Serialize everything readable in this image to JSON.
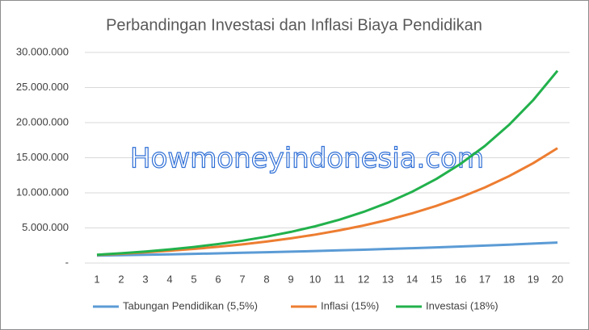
{
  "chart_data": {
    "type": "line",
    "title": "Perbandingan Investasi dan Inflasi Biaya Pendidikan",
    "watermark": "Howmoneyindonesia.com",
    "categories": [
      "1",
      "2",
      "3",
      "4",
      "5",
      "6",
      "7",
      "8",
      "9",
      "10",
      "11",
      "12",
      "13",
      "14",
      "15",
      "16",
      "17",
      "18",
      "19",
      "20"
    ],
    "series": [
      {
        "name": "Tabungan Pendidikan (5,5%)",
        "color": "#5b9bd5",
        "values": [
          1055000,
          1113000,
          1174000,
          1239000,
          1307000,
          1379000,
          1455000,
          1535000,
          1619000,
          1708000,
          1802000,
          1901000,
          2006000,
          2116000,
          2232000,
          2355000,
          2485000,
          2621000,
          2766000,
          2918000
        ]
      },
      {
        "name": "Inflasi (15%)",
        "color": "#ed7d31",
        "values": [
          1150000,
          1322500,
          1520900,
          1749000,
          2011400,
          2313100,
          2660000,
          3059000,
          3517900,
          4045600,
          4652400,
          5350300,
          6152800,
          7075700,
          8137100,
          9357600,
          10761300,
          12375500,
          14231800,
          16366500
        ]
      },
      {
        "name": "Investasi (18%)",
        "color": "#22b14c",
        "values": [
          1180000,
          1392400,
          1643000,
          1938800,
          2287800,
          2699600,
          3185500,
          3758900,
          4435500,
          5233800,
          6175900,
          7287600,
          8599400,
          10147200,
          11973700,
          14129000,
          16672200,
          19673300,
          23214400,
          27393000
        ]
      }
    ],
    "ylim": [
      0,
      30000000
    ],
    "yticks": [
      {
        "value": 0,
        "label": "-"
      },
      {
        "value": 5000000,
        "label": "5.000.000"
      },
      {
        "value": 10000000,
        "label": "10.000.000"
      },
      {
        "value": 15000000,
        "label": "15.000.000"
      },
      {
        "value": 20000000,
        "label": "20.000.000"
      },
      {
        "value": 25000000,
        "label": "25.000.000"
      },
      {
        "value": 30000000,
        "label": "30.000.000"
      }
    ],
    "grid": true,
    "legend": "bottom"
  }
}
